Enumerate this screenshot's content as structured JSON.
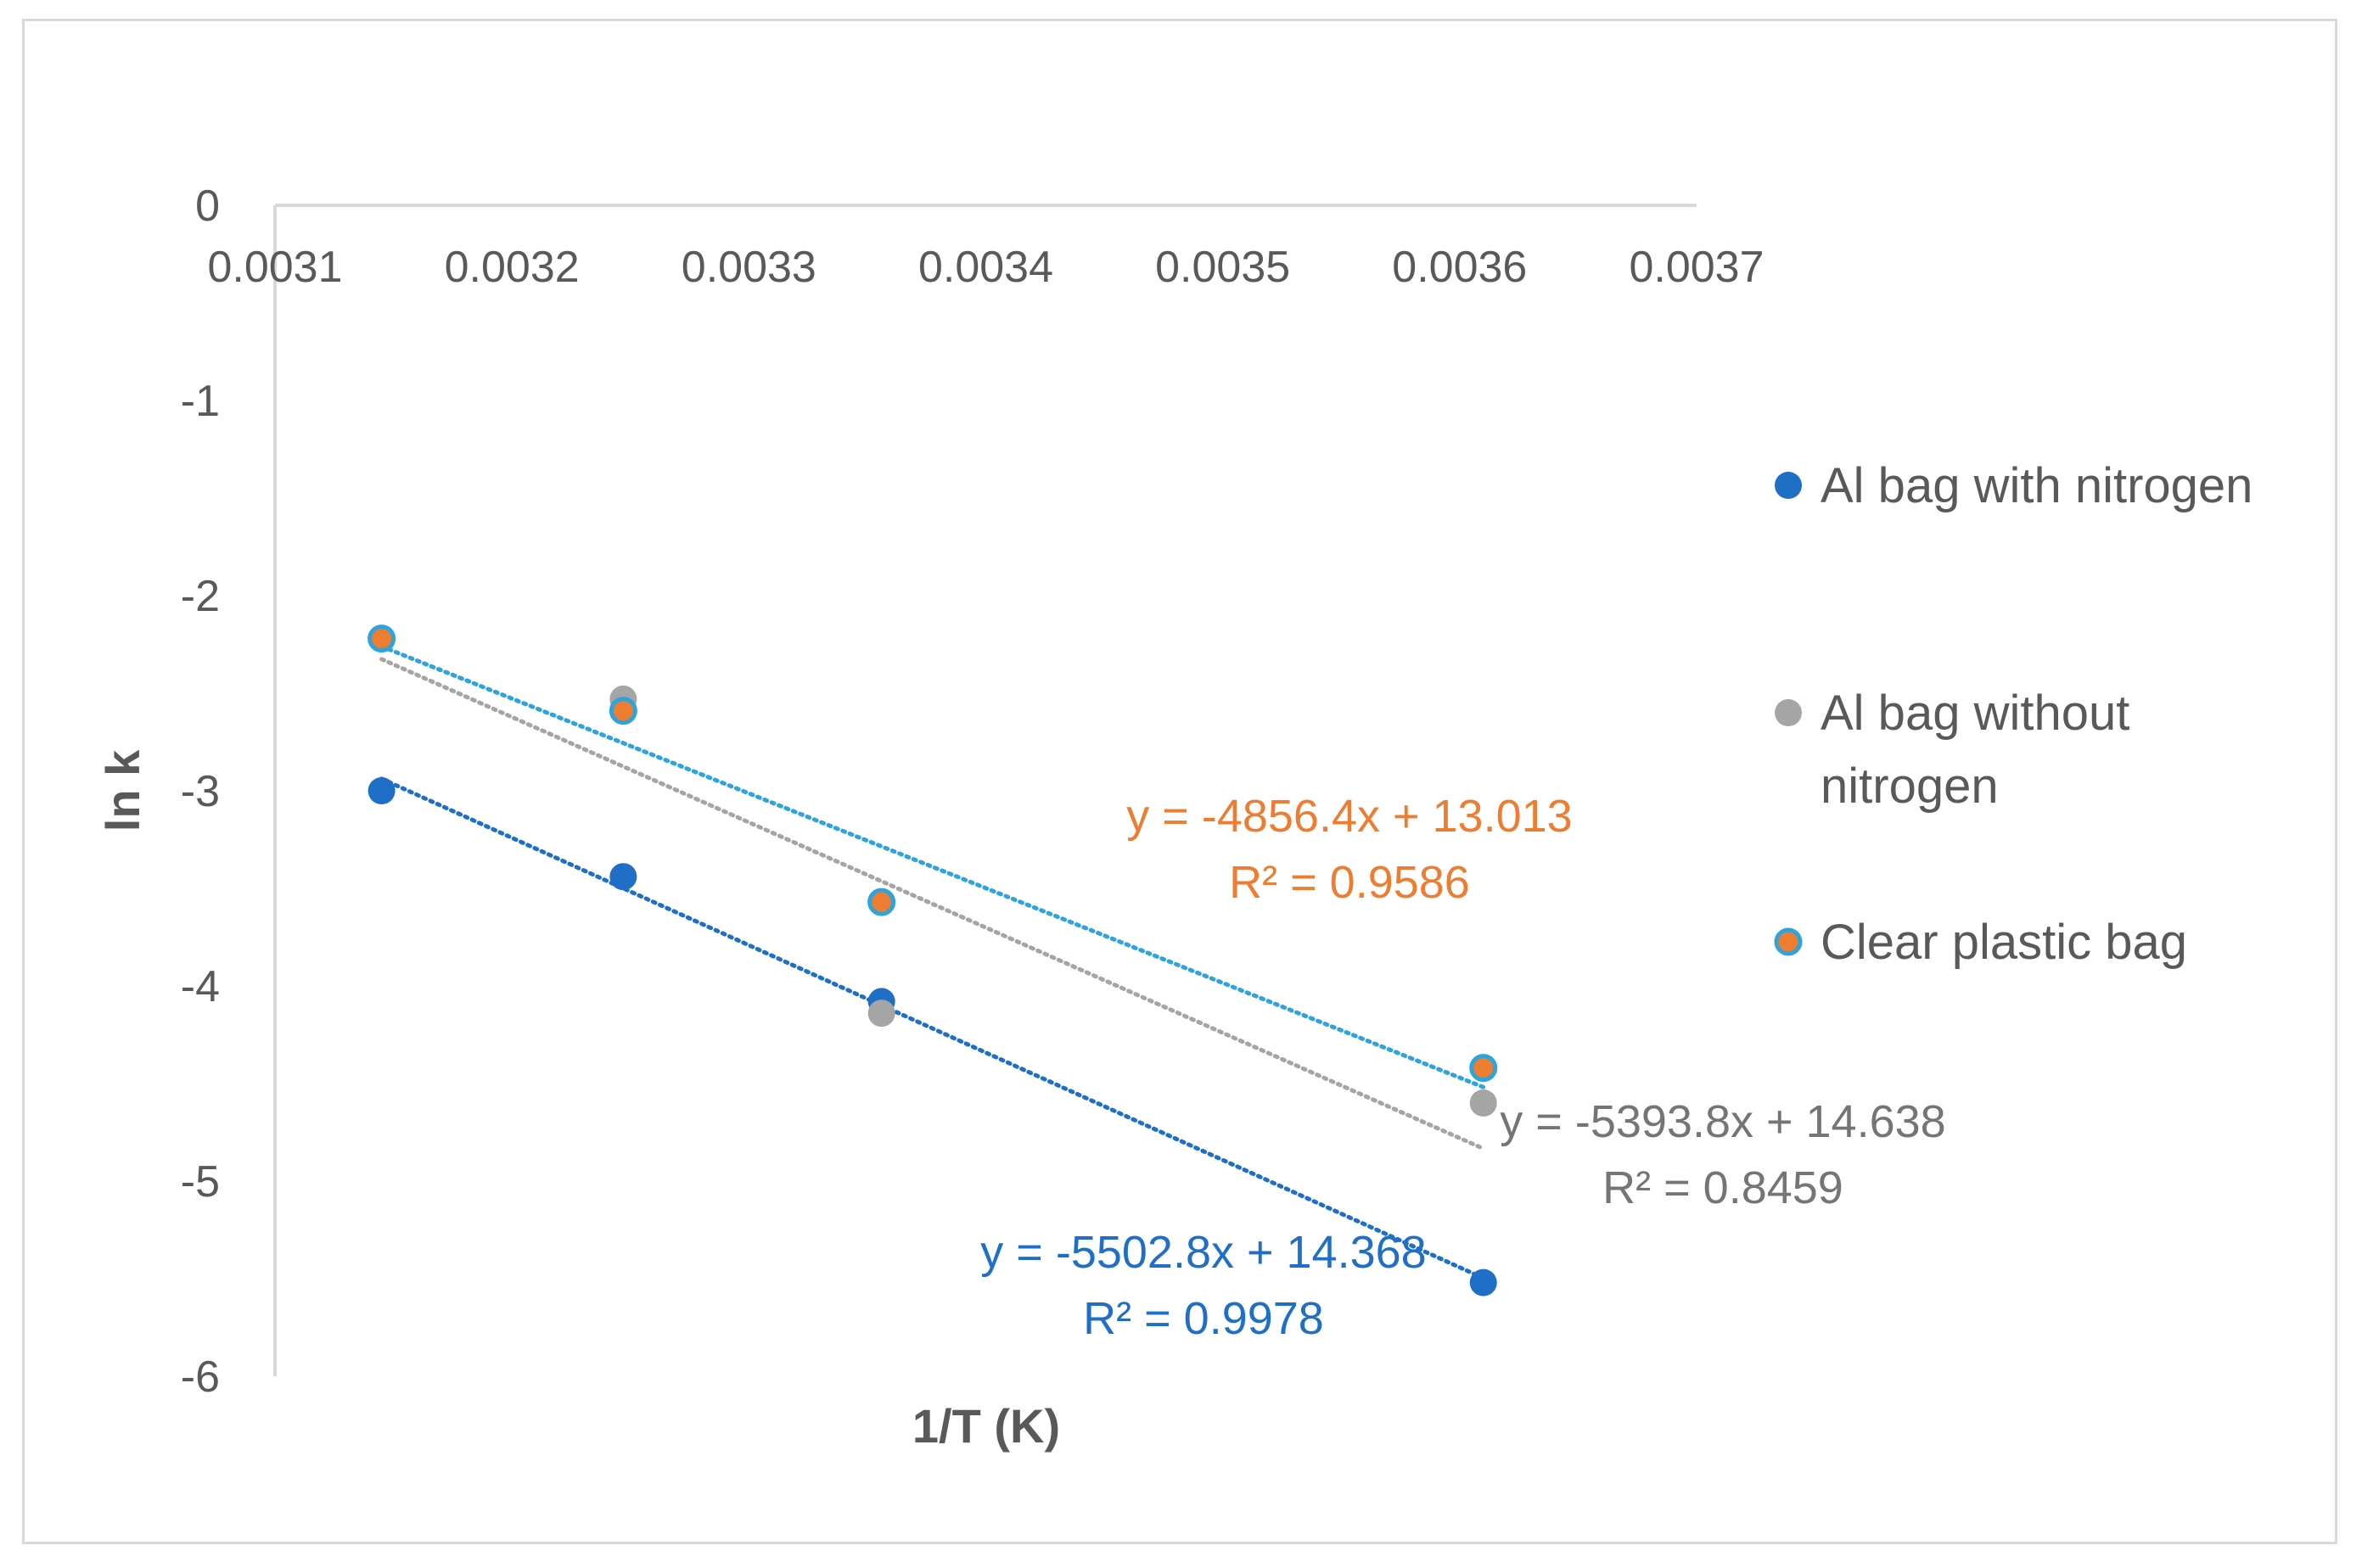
{
  "chart_data": {
    "type": "scatter",
    "xlabel": "1/T (K)",
    "ylabel": "ln k",
    "xlim": [
      0.0031,
      0.0037
    ],
    "ylim": [
      -6,
      0
    ],
    "x_ticks": [
      "0.0031",
      "0.0032",
      "0.0033",
      "0.0034",
      "0.0035",
      "0.0036",
      "0.0037"
    ],
    "y_ticks": [
      "0",
      "-1",
      "-2",
      "-3",
      "-4",
      "-5",
      "-6"
    ],
    "legend_position": "right",
    "series": [
      {
        "name": "Al bag with nitrogen",
        "color": "#1f6fc6",
        "x": [
          0.003145,
          0.003247,
          0.003356,
          0.00361
        ],
        "y": [
          -3.0,
          -3.44,
          -4.08,
          -5.52
        ],
        "trendline": {
          "slope": -5502.8,
          "intercept": 14.368
        },
        "equation": "y = -5502.8x + 14.368",
        "r2": "R² = 0.9978",
        "label_color": "#1f6fc6"
      },
      {
        "name": "Al bag without nitrogen",
        "color": "#a5a5a5",
        "x": [
          0.003145,
          0.003247,
          0.003356,
          0.00361
        ],
        "y": [
          -2.22,
          -2.53,
          -4.14,
          -4.6
        ],
        "trendline": {
          "slope": -5393.8,
          "intercept": 14.638
        },
        "equation": "y = -5393.8x + 14.638",
        "r2": "R² = 0.8459",
        "label_color": "#757575"
      },
      {
        "name": "Clear plastic bag",
        "color": "#ed7d31",
        "edge_color": "#2ea3dc",
        "trend_color": "#2ea3dc",
        "x": [
          0.003145,
          0.003247,
          0.003356,
          0.00361
        ],
        "y": [
          -2.22,
          -2.59,
          -3.57,
          -4.42
        ],
        "trendline": {
          "slope": -4856.4,
          "intercept": 13.013
        },
        "equation": "y = -4856.4x + 13.013",
        "r2": "R² = 0.9586",
        "label_color": "#ed7d31"
      }
    ]
  }
}
